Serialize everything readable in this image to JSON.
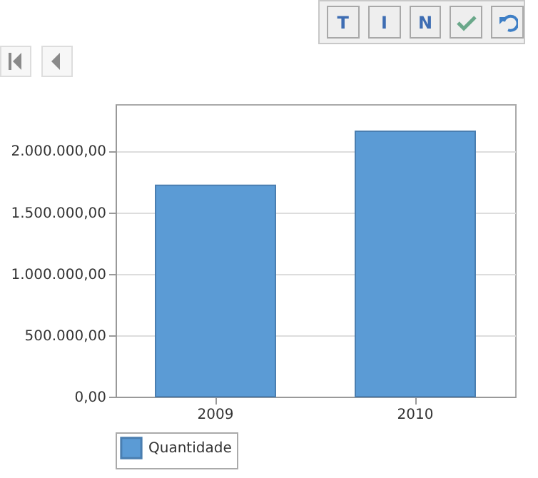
{
  "chart_data": {
    "type": "bar",
    "categories": [
      "2009",
      "2010"
    ],
    "series": [
      {
        "name": "Quantidade",
        "color": "#5b9bd5",
        "values": [
          1720000,
          2160000
        ]
      }
    ],
    "ylim": [
      0,
      2380000
    ],
    "yticks": [
      {
        "value": 0,
        "label": "0,00"
      },
      {
        "value": 500000,
        "label": "500.000,00"
      },
      {
        "value": 1000000,
        "label": "1.000.000,00"
      },
      {
        "value": 1500000,
        "label": "1.500.000,00"
      },
      {
        "value": 2000000,
        "label": "2.000.000,00"
      }
    ],
    "grid": "y",
    "legend": "bottom",
    "annotations": [
      "T",
      "I",
      "N"
    ]
  }
}
